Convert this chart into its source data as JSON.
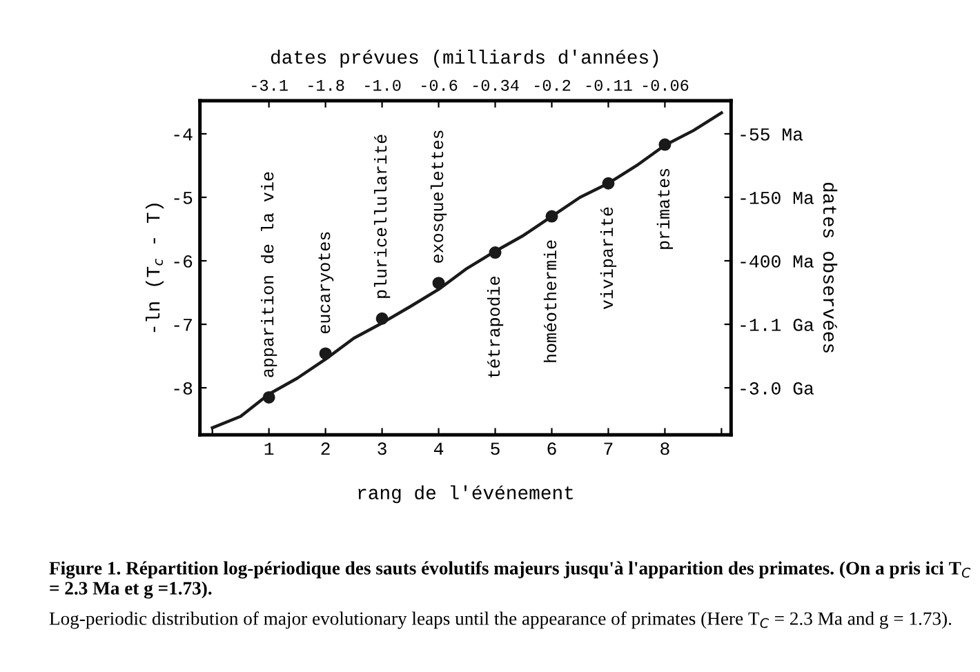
{
  "chart_data": {
    "type": "scatter",
    "xlabel": "rang de l'événement",
    "ylabel": "-ln (T$_{c}$ - T)",
    "x2label": "dates prévues (milliards d'années)",
    "y2label": "dates observées",
    "xlim": [
      -0.22,
      9.17
    ],
    "xticks": [
      {
        "value": 0,
        "label": null
      },
      1,
      2,
      3,
      4,
      5,
      6,
      7,
      8,
      {
        "value": 9,
        "label": null
      }
    ],
    "ylim": [
      -8.74,
      -3.48
    ],
    "yticks": [
      -8,
      -7,
      -6,
      -5,
      -4
    ],
    "y2_categories": [
      "-55 Ma",
      "-150 Ma",
      "-400 Ma",
      "-1.1 Ga",
      "-3.0 Ga"
    ],
    "grid": false,
    "legend": false,
    "series": [
      {
        "color": "#1a1a1a",
        "marker": "circle",
        "x": [
          1,
          2,
          3,
          4,
          5,
          6,
          7,
          8
        ],
        "values": [
          -8.15,
          -7.46,
          -6.91,
          -6.35,
          -5.87,
          -5.3,
          -4.78,
          -4.17
        ]
      },
      {
        "type": "line",
        "color": "#1a1a1a",
        "marker": "none",
        "line_style": "solid",
        "x": [
          0,
          0.5,
          1,
          1.5,
          2,
          2.5,
          3,
          3.5,
          4,
          4.5,
          5,
          5.5,
          6,
          6.5,
          7,
          7.5,
          8,
          8.5,
          9
        ],
        "values": [
          -8.63,
          -8.45,
          -8.1,
          -7.85,
          -7.55,
          -7.22,
          -6.98,
          -6.72,
          -6.45,
          -6.12,
          -5.85,
          -5.6,
          -5.3,
          -5.0,
          -4.78,
          -4.5,
          -4.18,
          -3.95,
          -3.67
        ]
      }
    ],
    "annotations": [
      {
        "text": "apparition de la vie",
        "x": 1,
        "y": -8.15
      },
      {
        "text": "eucaryotes",
        "x": 2,
        "y": -7.46
      },
      {
        "text": "pluricellularité",
        "x": 3,
        "y": -6.91
      },
      {
        "text": "exosquelettes",
        "x": 4,
        "y": -6.35
      },
      {
        "text": "tétrapodie",
        "x": 5,
        "y": -5.87
      },
      {
        "text": "homéothermie",
        "x": 6,
        "y": -5.3
      },
      {
        "text": "viviparité",
        "x": 7,
        "y": -4.78
      },
      {
        "text": "primates",
        "x": 8,
        "y": -4.17
      },
      "-3.1",
      "-1.8",
      "-1.0",
      "-0.6",
      "-0.34",
      "-0.2",
      "-0.11",
      "-0.06",
      "Figure 1. Répartition log-périodique des sauts évolutifs majeurs jusqu'à l'apparition des primates. (On a pris ici T$_{C}$ = 2.3 Ma et g =1.73).",
      "Log-periodic distribution of major evolutionary leaps until the appearance of primates (Here T$_{C}$ = 2.3 Ma and g = 1.73)."
    ]
  }
}
